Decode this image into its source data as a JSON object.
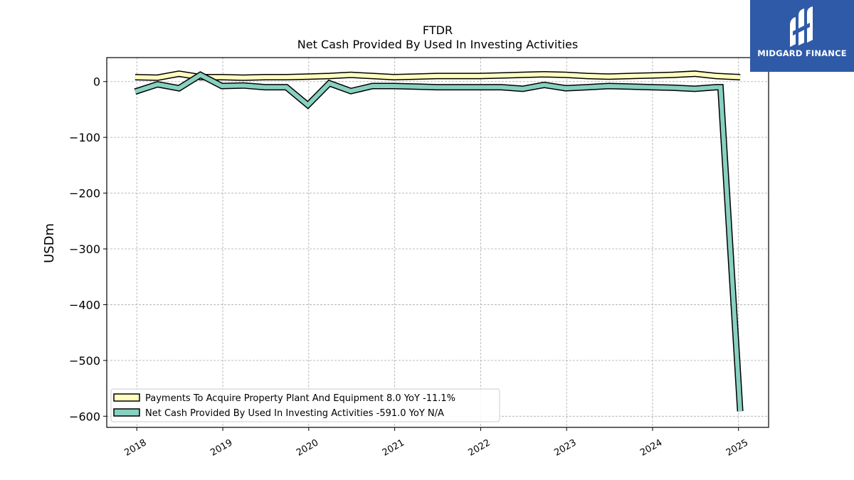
{
  "brand": {
    "name": "MIDGARD FINANCE",
    "color": "#2f5aa8"
  },
  "chart_data": {
    "type": "line",
    "title": "FTDR",
    "subtitle": "Net Cash Provided By Used In Investing Activities",
    "ylabel": "USDm",
    "xlabel": "",
    "ylim": [
      -620,
      43
    ],
    "xlim": [
      2017.65,
      2025.35
    ],
    "yticks": [
      0,
      -100,
      -200,
      -300,
      -400,
      -500,
      -600
    ],
    "ytick_labels": [
      "0",
      "−100",
      "−200",
      "−300",
      "−400",
      "−500",
      "−600"
    ],
    "xticks": [
      2018,
      2019,
      2020,
      2021,
      2022,
      2023,
      2024,
      2025
    ],
    "xtick_labels": [
      "2018",
      "2019",
      "2020",
      "2021",
      "2022",
      "2023",
      "2024",
      "2025"
    ],
    "grid": true,
    "legend_position": "lower-left",
    "series": [
      {
        "name": "Payments To Acquire Property Plant And Equipment  8.0 YoY -11.1%",
        "color": "#ffffc0",
        "x": [
          2017.98,
          2018.24,
          2018.49,
          2018.74,
          2018.99,
          2019.24,
          2019.49,
          2019.74,
          2019.99,
          2020.24,
          2020.49,
          2020.74,
          2020.99,
          2021.24,
          2021.49,
          2021.74,
          2021.99,
          2022.24,
          2022.49,
          2022.74,
          2022.99,
          2023.24,
          2023.49,
          2023.74,
          2023.99,
          2024.24,
          2024.49,
          2024.74,
          2025.02
        ],
        "y": [
          8,
          7,
          14,
          8,
          8,
          7,
          8,
          8,
          9,
          10,
          12,
          10,
          8,
          9,
          10,
          10,
          10,
          11,
          12,
          13,
          12,
          10,
          9,
          10,
          11,
          12,
          14,
          10,
          8
        ]
      },
      {
        "name": "Net Cash Provided By Used In Investing Activities  -591.0 YoY N/A",
        "color": "#88d0c0",
        "x": [
          2017.98,
          2018.24,
          2018.49,
          2018.74,
          2018.99,
          2019.24,
          2019.49,
          2019.74,
          2019.99,
          2020.24,
          2020.49,
          2020.74,
          2020.99,
          2021.24,
          2021.49,
          2021.74,
          2021.99,
          2022.24,
          2022.49,
          2022.74,
          2022.99,
          2023.24,
          2023.49,
          2023.74,
          2023.99,
          2024.24,
          2024.49,
          2024.74,
          2024.79,
          2025.02
        ],
        "y": [
          -18,
          -5,
          -12,
          12,
          -8,
          -7,
          -10,
          -10,
          -42,
          -3,
          -17,
          -8,
          -8,
          -9,
          -10,
          -10,
          -10,
          -10,
          -13,
          -6,
          -12,
          -10,
          -8,
          -9,
          -10,
          -11,
          -13,
          -10,
          -10,
          -591
        ]
      }
    ]
  }
}
